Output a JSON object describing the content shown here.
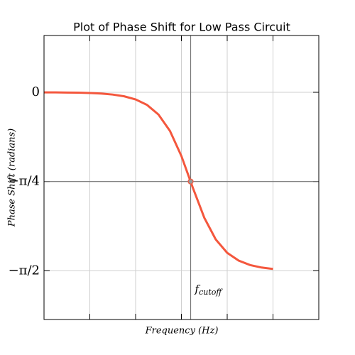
{
  "chart_data": {
    "type": "line",
    "title": "Plot of Phase Shift for Low Pass Circuit",
    "xlabel": "Frequency (Hz)",
    "ylabel": "Phase Shift (radians)",
    "x": [
      1,
      1.778,
      3.162,
      5.623,
      10,
      17.78,
      31.62,
      56.23,
      100,
      177.8,
      316.2,
      562.3,
      1000,
      1778,
      3162,
      5623,
      10000,
      17783,
      31623,
      56234,
      100000
    ],
    "series": [
      {
        "name": "Phase Shift",
        "color": "#f4573d",
        "values": [
          -0.0006,
          -0.0011,
          -0.002,
          -0.0035,
          -0.0063,
          -0.0112,
          -0.0199,
          -0.0353,
          -0.0627,
          -0.1113,
          -0.1961,
          -0.3399,
          -0.561,
          -0.8407,
          -1.1045,
          -1.2951,
          -1.413,
          -1.4815,
          -1.5205,
          -1.5425,
          -1.5549
        ]
      }
    ],
    "xlog": true,
    "xlim": [
      1,
      1000000
    ],
    "xticks": [
      10,
      100,
      1000,
      10000,
      100000
    ],
    "ylim": [
      -2.0,
      0.5
    ],
    "yticks": [
      0,
      {
        "value": -0.7854,
        "label": "−π/4"
      },
      {
        "value": -1.5708,
        "label": "−π/2"
      }
    ],
    "grid": true,
    "cutoff": {
      "x": 1591.5,
      "y": -0.7854,
      "label": "f",
      "subscript": "cutoff"
    }
  }
}
